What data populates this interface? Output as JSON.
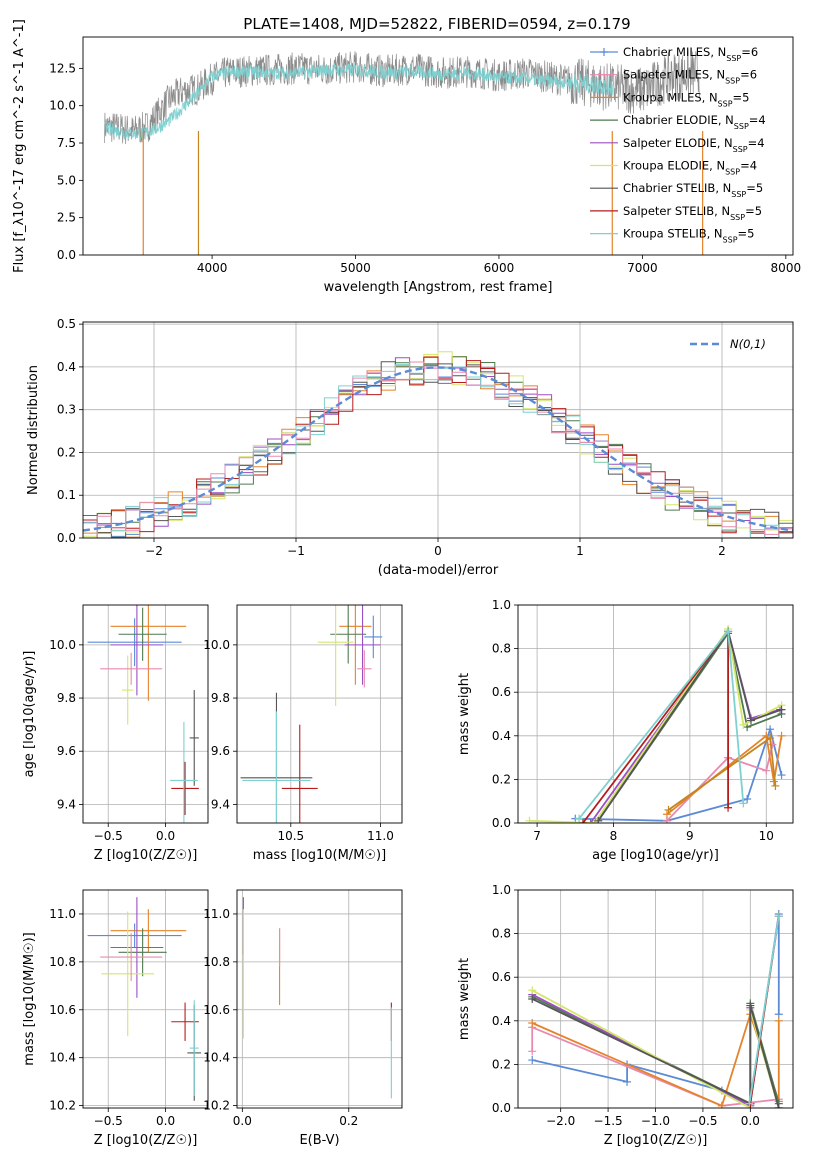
{
  "title": "PLATE=1408, MJD=52822, FIBERID=0594, z=0.179",
  "colors": {
    "blue": "#5b8bd6",
    "orange": "#e5832b",
    "brown": "#c4851f",
    "green": "#4f7a4f",
    "purple": "#9b4fc4",
    "yellow": "#d4e66a",
    "dark": "#555555",
    "red": "#b51d1d",
    "cyan": "#7fd0d0",
    "pink": "#e88ab0",
    "gray": "#8c8c8c",
    "grid": "#b0b0b0"
  },
  "chart_data": [
    {
      "type": "line",
      "xlabel": "wavelength [Angstrom, rest frame]",
      "ylabel": "Flux [f_λ10^-17 erg cm^-2 s^-1 A^-1]",
      "xlim": [
        3100,
        8050
      ],
      "ylim": [
        0,
        14.6
      ],
      "xticks": [
        4000,
        5000,
        6000,
        7000,
        8000
      ],
      "yticks": [
        0.0,
        2.5,
        5.0,
        7.5,
        10.0,
        12.5
      ],
      "legend_position": "top-right",
      "legend": [
        {
          "label": "Chabrier MILES, N",
          "sub": "SSP",
          "tail": "=6",
          "color": "blue",
          "marker": "+"
        },
        {
          "label": "Salpeter MILES, N",
          "sub": "SSP",
          "tail": "=6",
          "color": "pink",
          "marker": "+"
        },
        {
          "label": "Kroupa MILES, N",
          "sub": "SSP",
          "tail": "=5",
          "color": "orange",
          "marker": ""
        },
        {
          "label": "Chabrier ELODIE, N",
          "sub": "SSP",
          "tail": "=4",
          "color": "green",
          "marker": ""
        },
        {
          "label": "Salpeter ELODIE, N",
          "sub": "SSP",
          "tail": "=4",
          "color": "purple",
          "marker": ""
        },
        {
          "label": "Kroupa ELODIE, N",
          "sub": "SSP",
          "tail": "=4",
          "color": "yellow",
          "marker": ""
        },
        {
          "label": "Chabrier STELIB, N",
          "sub": "SSP",
          "tail": "=5",
          "color": "dark",
          "marker": ""
        },
        {
          "label": "Salpeter STELIB, N",
          "sub": "SSP",
          "tail": "=5",
          "color": "red",
          "marker": ""
        },
        {
          "label": "Kroupa STELIB, N",
          "sub": "SSP",
          "tail": "=5",
          "color": "cyan",
          "marker": ""
        }
      ],
      "series": [
        {
          "color": "gray",
          "x": [
            3250,
            3350,
            3450,
            3550,
            3600,
            3700,
            3800,
            3900,
            4000,
            4100,
            4200,
            4400,
            4600,
            4800,
            5000,
            5200,
            5400,
            5600,
            5800,
            6000,
            6200,
            6400,
            6600,
            6800,
            7000,
            7200,
            7400
          ],
          "y": [
            8.6,
            8.5,
            8.3,
            8.6,
            9.2,
            10.4,
            11.0,
            11.1,
            11.8,
            12.2,
            12.3,
            12.4,
            12.5,
            12.4,
            12.6,
            12.3,
            12.5,
            12.2,
            12.3,
            12.0,
            12.2,
            11.8,
            11.5,
            11.2,
            11.0,
            12.0,
            12.2
          ]
        },
        {
          "color": "cyan",
          "x": [
            3250,
            3400,
            3500,
            3600,
            3700,
            3800,
            3900,
            4000,
            4200,
            4400,
            4600,
            4800,
            5000,
            5200,
            5400,
            5600,
            5800,
            6000,
            6200,
            6400,
            6600,
            6800
          ],
          "y": [
            8.5,
            8.2,
            8.1,
            8.4,
            9.0,
            9.9,
            10.8,
            12.0,
            12.3,
            12.2,
            12.2,
            12.4,
            12.4,
            12.2,
            12.3,
            12.1,
            12.2,
            11.9,
            11.8,
            11.6,
            11.5,
            11.3
          ]
        }
      ],
      "cutoffs": [
        {
          "color": "orange",
          "x": 3520
        },
        {
          "color": "brown",
          "x": 3905
        },
        {
          "color": "orange",
          "x": 6790
        },
        {
          "color": "orange",
          "x": 7420
        }
      ]
    },
    {
      "type": "histogram",
      "xlabel": "(data-model)/error",
      "ylabel": "Normed distribution",
      "xlim": [
        -2.5,
        2.5
      ],
      "ylim": [
        0,
        0.505
      ],
      "xticks": [
        -2,
        -1,
        0,
        1,
        2
      ],
      "yticks": [
        0.0,
        0.1,
        0.2,
        0.3,
        0.4,
        0.5
      ],
      "legend_position": "top-right",
      "curve_label": "N(0,1)",
      "bin_width": 0.1,
      "series_colors": [
        "blue",
        "orange",
        "green",
        "purple",
        "yellow",
        "dark",
        "red",
        "cyan",
        "pink"
      ]
    },
    {
      "type": "errorbar",
      "xlabel": "Z [log10(Z/Z☉)]",
      "ylabel": "age [log10(age/yr)]",
      "xlim": [
        -0.72,
        0.37
      ],
      "ylim": [
        9.33,
        10.15
      ],
      "xticks": [
        -0.5,
        0.0
      ],
      "yticks": [
        9.4,
        9.6,
        9.8,
        10.0
      ],
      "points": [
        {
          "c": "blue",
          "x": -0.27,
          "xe": 0.41,
          "y": 10.01,
          "ye": 0.09
        },
        {
          "c": "orange",
          "x": -0.15,
          "xe": 0.33,
          "y": 10.07,
          "ye": 0.28
        },
        {
          "c": "green",
          "x": -0.2,
          "xe": 0.21,
          "y": 10.04,
          "ye": 0.1
        },
        {
          "c": "purple",
          "x": -0.25,
          "xe": 0.23,
          "y": 10.0,
          "ye": 0.19
        },
        {
          "c": "yellow",
          "x": -0.33,
          "xe": 0.05,
          "y": 9.83,
          "ye": 0.13
        },
        {
          "c": "pink",
          "x": -0.3,
          "xe": 0.27,
          "y": 9.91,
          "ye": 0.06
        },
        {
          "c": "dark",
          "x": 0.25,
          "xe": 0.04,
          "y": 9.65,
          "ye": 0.18
        },
        {
          "c": "red",
          "x": 0.17,
          "xe": 0.12,
          "y": 9.46,
          "ye": 0.1
        },
        {
          "c": "cyan",
          "x": 0.16,
          "xe": 0.12,
          "y": 9.49,
          "ye": 0.22
        }
      ]
    },
    {
      "type": "errorbar",
      "xlabel": "mass [log10(M/M☉)]",
      "ylabel": "",
      "xlim": [
        10.2,
        11.12
      ],
      "ylim": [
        9.33,
        10.15
      ],
      "xticks": [
        10.5,
        11.0
      ],
      "yticks": [
        9.4,
        9.6,
        9.8,
        10.0
      ],
      "points": [
        {
          "c": "blue",
          "x": 10.96,
          "xe": 0.05,
          "y": 10.03,
          "ye": 0.08
        },
        {
          "c": "orange",
          "x": 10.86,
          "xe": 0.09,
          "y": 10.07,
          "ye": 0.22
        },
        {
          "c": "green",
          "x": 10.82,
          "xe": 0.1,
          "y": 10.04,
          "ye": 0.11
        },
        {
          "c": "purple",
          "x": 10.9,
          "xe": 0.1,
          "y": 10.0,
          "ye": 0.15
        },
        {
          "c": "yellow",
          "x": 10.75,
          "xe": 0.1,
          "y": 10.01,
          "ye": 0.24
        },
        {
          "c": "pink",
          "x": 10.91,
          "xe": 0.04,
          "y": 9.91,
          "ye": 0.07
        },
        {
          "c": "dark",
          "x": 10.42,
          "xe": 0.2,
          "y": 9.5,
          "ye": 0.32
        },
        {
          "c": "red",
          "x": 10.55,
          "xe": 0.1,
          "y": 9.46,
          "ye": 0.24
        },
        {
          "c": "cyan",
          "x": 10.42,
          "xe": 0.19,
          "y": 9.49,
          "ye": 0.26
        }
      ]
    },
    {
      "type": "line",
      "xlabel": "age [log10(age/yr)]",
      "ylabel": "mass weight",
      "xlim": [
        6.75,
        10.35
      ],
      "ylim": [
        0,
        1.0
      ],
      "xticks": [
        7,
        8,
        9,
        10
      ],
      "yticks": [
        0.0,
        0.2,
        0.4,
        0.6,
        0.8,
        1.0
      ],
      "series": [
        {
          "c": "blue",
          "m": "+",
          "x": [
            7.5,
            8.7,
            9.75,
            10.05,
            10.2
          ],
          "y": [
            0.02,
            0.01,
            0.11,
            0.43,
            0.22
          ]
        },
        {
          "c": "pink",
          "m": "+",
          "x": [
            8.7,
            9.5,
            10.0,
            10.08
          ],
          "y": [
            0.01,
            0.3,
            0.24,
            0.36
          ]
        },
        {
          "c": "orange",
          "m": "+",
          "x": [
            8.7,
            10.0,
            10.1,
            10.2
          ],
          "y": [
            0.04,
            0.4,
            0.19,
            0.4
          ]
        },
        {
          "c": "brown",
          "m": "+",
          "x": [
            8.72,
            10.05,
            10.12
          ],
          "y": [
            0.06,
            0.39,
            0.17
          ]
        },
        {
          "c": "green",
          "m": "+",
          "x": [
            7.8,
            9.5,
            9.75,
            10.2
          ],
          "y": [
            0.01,
            0.87,
            0.44,
            0.5
          ]
        },
        {
          "c": "purple",
          "m": "+",
          "x": [
            7.7,
            9.5,
            9.8,
            10.18
          ],
          "y": [
            0.0,
            0.88,
            0.48,
            0.52
          ]
        },
        {
          "c": "yellow",
          "m": "+",
          "x": [
            6.9,
            7.75,
            9.5,
            9.7,
            10.2
          ],
          "y": [
            0.01,
            0.0,
            0.89,
            0.45,
            0.54
          ]
        },
        {
          "c": "dark",
          "m": "+",
          "x": [
            7.8,
            9.5,
            9.8,
            10.2
          ],
          "y": [
            0.01,
            0.88,
            0.47,
            0.52
          ]
        },
        {
          "c": "red",
          "m": "+",
          "x": [
            7.6,
            9.5,
            9.5
          ],
          "y": [
            0.0,
            0.88,
            0.07
          ]
        },
        {
          "c": "cyan",
          "m": "+",
          "x": [
            7.55,
            9.5,
            9.7
          ],
          "y": [
            0.02,
            0.88,
            0.09
          ]
        }
      ]
    },
    {
      "type": "errorbar",
      "xlabel": "Z [log10(Z/Z☉)]",
      "ylabel": "mass [log10(M/M☉)]",
      "xlim": [
        -0.72,
        0.37
      ],
      "ylim": [
        10.19,
        11.1
      ],
      "xticks": [
        -0.5,
        0.0
      ],
      "yticks": [
        10.2,
        10.4,
        10.6,
        10.8,
        11.0
      ],
      "points": [
        {
          "c": "blue",
          "x": -0.27,
          "xe": 0.41,
          "y": 10.91,
          "ye": 0.05
        },
        {
          "c": "orange",
          "x": -0.15,
          "xe": 0.33,
          "y": 10.93,
          "ye": 0.09
        },
        {
          "c": "green",
          "x": -0.2,
          "xe": 0.21,
          "y": 10.84,
          "ye": 0.1
        },
        {
          "c": "purple",
          "x": -0.25,
          "xe": 0.23,
          "y": 10.86,
          "ye": 0.21
        },
        {
          "c": "yellow",
          "x": -0.33,
          "xe": 0.23,
          "y": 10.75,
          "ye": 0.26
        },
        {
          "c": "pink",
          "x": -0.3,
          "xe": 0.27,
          "y": 10.82,
          "ye": 0.1
        },
        {
          "c": "dark",
          "x": 0.25,
          "xe": 0.06,
          "y": 10.42,
          "ye": 0.2
        },
        {
          "c": "red",
          "x": 0.17,
          "xe": 0.12,
          "y": 10.55,
          "ye": 0.08
        },
        {
          "c": "cyan",
          "x": 0.25,
          "xe": 0.04,
          "y": 10.44,
          "ye": 0.2
        }
      ]
    },
    {
      "type": "errorbar",
      "xlabel": "E(B-V)",
      "ylabel": "",
      "xlim": [
        -0.01,
        0.3
      ],
      "ylim": [
        10.19,
        11.1
      ],
      "xticks": [
        0.0,
        0.2
      ],
      "yticks": [
        10.2,
        10.4,
        10.6,
        10.8,
        11.0
      ],
      "points": [
        {
          "c": "purple",
          "x": 0.002,
          "xe": 0,
          "y": 10.95,
          "ye": 0.12
        },
        {
          "c": "yellow",
          "x": 0.002,
          "xe": 0,
          "y": 10.75,
          "ye": 0.27
        },
        {
          "c": "orange",
          "x": 0.07,
          "xe": 0,
          "y": 10.78,
          "ye": 0.16
        },
        {
          "c": "pink",
          "x": 0.07,
          "xe": 0,
          "y": 10.86,
          "ye": 0.08
        },
        {
          "c": "red",
          "x": 0.28,
          "xe": 0,
          "y": 10.55,
          "ye": 0.08
        },
        {
          "c": "cyan",
          "x": 0.28,
          "xe": 0,
          "y": 10.42,
          "ye": 0.19
        }
      ]
    },
    {
      "type": "line",
      "xlabel": "Z [log10(Z/Z☉)]",
      "ylabel": "mass weight",
      "xlim": [
        -2.45,
        0.45
      ],
      "ylim": [
        0,
        1.0
      ],
      "xticks": [
        -2.0,
        -1.5,
        -1.0,
        -0.5,
        0.0
      ],
      "yticks": [
        0.0,
        0.2,
        0.4,
        0.6,
        0.8,
        1.0
      ],
      "series": [
        {
          "c": "blue",
          "m": "+",
          "x": [
            -2.3,
            -1.3,
            -1.3,
            -0.3,
            0.0,
            0.3,
            0.3
          ],
          "y": [
            0.22,
            0.12,
            0.2,
            0.08,
            0.02,
            0.89,
            0.43
          ]
        },
        {
          "c": "pink",
          "m": "+",
          "x": [
            -2.3,
            -2.3,
            -0.3,
            0.3,
            0.3
          ],
          "y": [
            0.26,
            0.37,
            0.01,
            0.04,
            0.03
          ]
        },
        {
          "c": "orange",
          "m": "+",
          "x": [
            -2.3,
            -0.3,
            0.0,
            0.3,
            0.3
          ],
          "y": [
            0.39,
            0.01,
            0.43,
            0.03,
            0.4
          ]
        },
        {
          "c": "green",
          "m": "+",
          "x": [
            -2.3,
            0.0,
            0.0,
            0.3
          ],
          "y": [
            0.51,
            0.02,
            0.48,
            0.02
          ]
        },
        {
          "c": "purple",
          "m": "+",
          "x": [
            -2.3,
            0.0,
            0.0,
            0.3
          ],
          "y": [
            0.52,
            0.01,
            0.46,
            0.0
          ]
        },
        {
          "c": "yellow",
          "m": "+",
          "x": [
            -2.3,
            0.0,
            0.0,
            0.3
          ],
          "y": [
            0.54,
            0.0,
            0.45,
            0.0
          ]
        },
        {
          "c": "dark",
          "m": "+",
          "x": [
            -2.3,
            0.0,
            0.0,
            0.3
          ],
          "y": [
            0.5,
            0.02,
            0.47,
            0.0
          ]
        },
        {
          "c": "red",
          "m": "+",
          "x": [
            -0.0,
            0.3
          ],
          "y": [
            0.02,
            0.88
          ]
        },
        {
          "c": "cyan",
          "m": "+",
          "x": [
            -0.01,
            0.3
          ],
          "y": [
            0.02,
            0.88
          ]
        }
      ]
    }
  ]
}
